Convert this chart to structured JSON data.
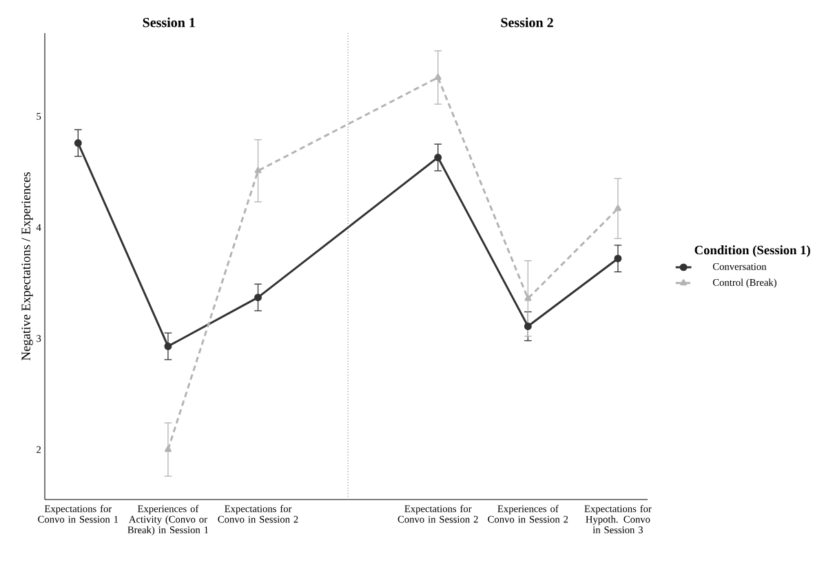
{
  "chart_data": {
    "type": "line",
    "annotations": [
      "Session 1",
      "Session 2"
    ],
    "ylabel": "Negative Expectations / Experiences",
    "legend_title": "Condition (Session 1)",
    "categories": [
      "Expectations for Convo in Session 1",
      "Experiences of Activity (Convo or Break) in Session 1",
      "Expectations for Convo in Session 2",
      null,
      "Expectations for Convo in Session 2",
      "Experiences of Convo in Session 2",
      "Expectations for Hypoth. Convo in Session 3"
    ],
    "ylim": [
      1.55,
      5.75
    ],
    "yticks": [
      2,
      3,
      4,
      5
    ],
    "series": [
      {
        "name": "Conversation",
        "color": "#333333",
        "marker": "circle",
        "line_style": "solid",
        "values": [
          4.76,
          2.93,
          3.37,
          null,
          4.63,
          3.11,
          3.72
        ],
        "errors": [
          0.12,
          0.12,
          0.12,
          null,
          0.12,
          0.13,
          0.12
        ]
      },
      {
        "name": "Control (Break)",
        "color": "#b3b3b3",
        "marker": "triangle",
        "line_style": "dashed",
        "values": [
          null,
          2.0,
          4.51,
          null,
          5.35,
          3.36,
          4.17
        ],
        "errors": [
          null,
          0.24,
          0.28,
          null,
          0.24,
          0.34,
          0.27
        ]
      }
    ],
    "legend": "right"
  }
}
